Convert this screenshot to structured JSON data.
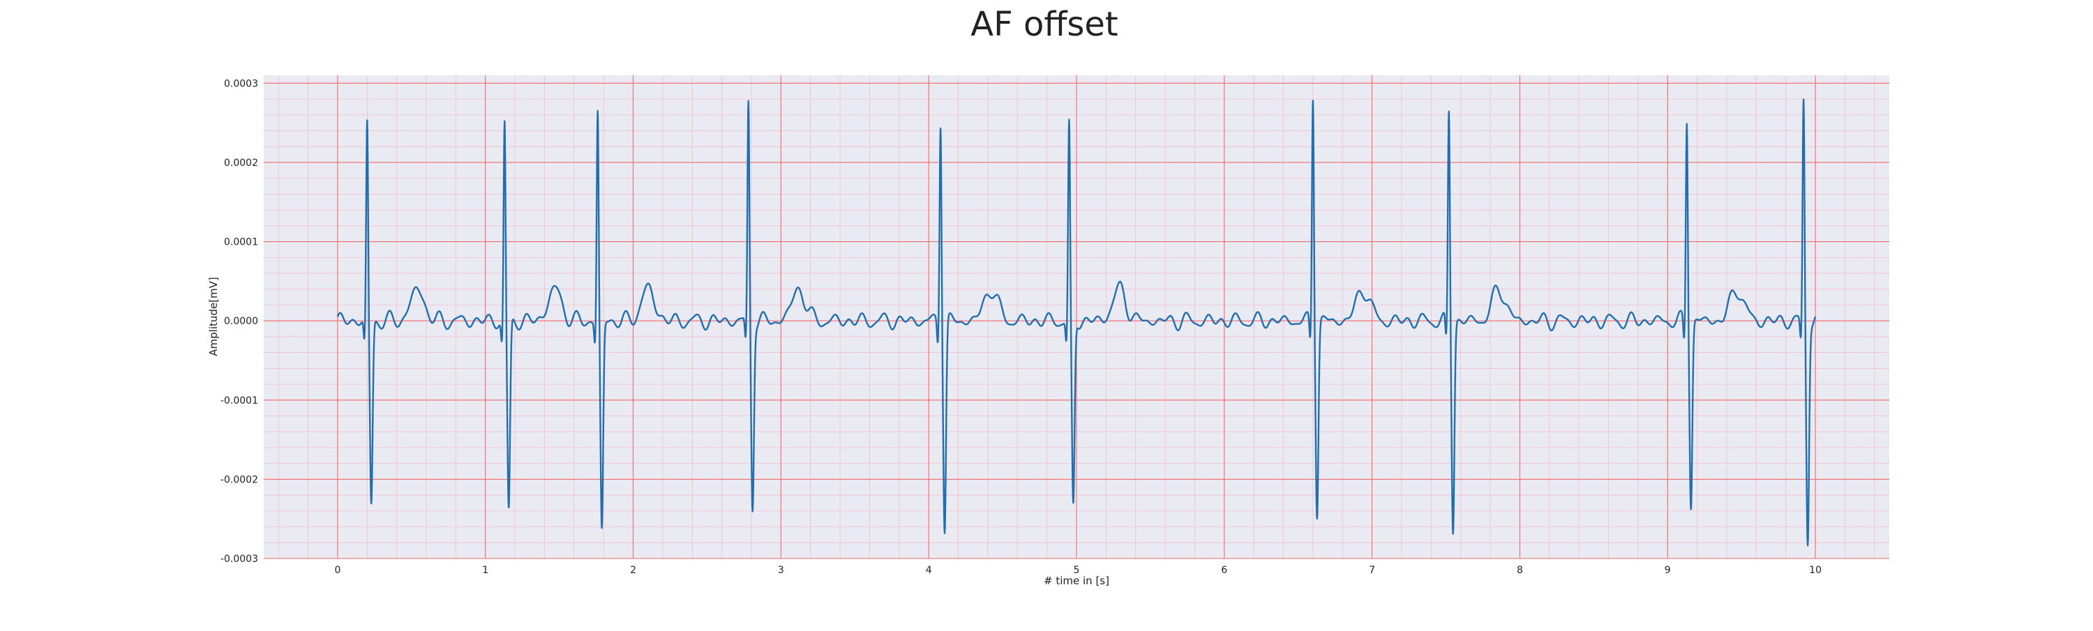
{
  "chart_data": {
    "type": "line",
    "title": "AF offset",
    "xlabel": "# time in [s]",
    "ylabel": "Amplitude[mV]",
    "xlim": [
      -0.5,
      10.5
    ],
    "ylim": [
      -0.0003,
      0.00031
    ],
    "xticks": [
      0,
      1,
      2,
      3,
      4,
      5,
      6,
      7,
      8,
      9,
      10
    ],
    "xtick_labels": [
      "0",
      "1",
      "2",
      "3",
      "4",
      "5",
      "6",
      "7",
      "8",
      "9",
      "10"
    ],
    "yticks": [
      -0.0003,
      -0.0002,
      -0.0001,
      0.0,
      0.0001,
      0.0002,
      0.0003
    ],
    "ytick_labels": [
      "-0.0003",
      "-0.0002",
      "-0.0001",
      "0.0000",
      "0.0001",
      "0.0002",
      "0.0003"
    ],
    "grid": true,
    "minor_grid": true,
    "series": [
      {
        "color": "#1f6fb0",
        "r_peaks_s": [
          0.2,
          1.13,
          1.76,
          2.78,
          4.08,
          4.95,
          6.6,
          7.52,
          9.13,
          9.92
        ],
        "r_amplitude": [
          0.00025,
          0.00025,
          0.000265,
          0.000275,
          0.000257,
          0.000248,
          0.000288,
          0.000267,
          0.000258,
          0.00028
        ],
        "s_amplitude": [
          -0.000233,
          -0.000242,
          -0.000266,
          -0.000233,
          -0.000262,
          -0.000237,
          -0.00024,
          -0.000262,
          -0.000231,
          -0.000276
        ],
        "baseline": 0.0,
        "wave_amplitude": 4e-05,
        "x_start": 0.0,
        "x_end": 10.0
      }
    ]
  }
}
